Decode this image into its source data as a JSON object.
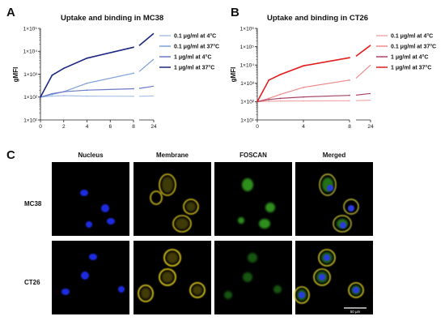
{
  "figure": {
    "panel_letters": [
      "A",
      "B",
      "C"
    ],
    "scalebar_label": "50 μm"
  },
  "chart_data": [
    {
      "type": "line",
      "panel": "A",
      "title": "Uptake and binding in MC38",
      "ylabel": "gMFI",
      "xlabel": "",
      "yscale": "log",
      "ylim": [
        10,
        100000
      ],
      "ytick_labels": [
        "1×10¹",
        "1×10²",
        "1×10³",
        "1×10⁴",
        "1×10⁵"
      ],
      "xtick_labels": [
        "0",
        "2",
        "4",
        "6",
        "8",
        "24"
      ],
      "x": [
        0,
        1,
        2,
        4,
        8,
        24
      ],
      "x_axis_break": [
        8,
        24
      ],
      "legend_placement": "right",
      "series": [
        {
          "name": "0.1 μg/ml at 4°C",
          "color": "#a8c2e6",
          "values": [
            100,
            110,
            115,
            110,
            108,
            112
          ]
        },
        {
          "name": "0.1 μg/ml at 37°C",
          "color": "#7d9fd9",
          "values": [
            100,
            130,
            170,
            400,
            1100,
            4500
          ]
        },
        {
          "name": "1 μg/ml at 4°C",
          "color": "#6a79c9",
          "values": [
            100,
            140,
            170,
            200,
            230,
            300
          ]
        },
        {
          "name": "1 μg/ml at 37°C",
          "color": "#1a2680",
          "values": [
            100,
            900,
            1800,
            5000,
            15000,
            60000
          ]
        }
      ]
    },
    {
      "type": "line",
      "panel": "B",
      "title": "Uptake and binding in CT26",
      "ylabel": "gMFI",
      "xlabel": "",
      "yscale": "log",
      "ylim": [
        10,
        1000000
      ],
      "ytick_labels": [
        "1×10¹",
        "1×10²",
        "1×10³",
        "1×10⁴",
        "1×10⁵",
        "1×10⁶"
      ],
      "xtick_labels": [
        "0",
        "4",
        "8",
        "24"
      ],
      "x": [
        0,
        1,
        2,
        4,
        8,
        24
      ],
      "x_axis_break": [
        8,
        24
      ],
      "legend_placement": "right",
      "series": [
        {
          "name": "0.1 μg/ml at 4°C",
          "color": "#f2a8a8",
          "values": [
            100,
            105,
            108,
            110,
            112,
            120
          ]
        },
        {
          "name": "0.1 μg/ml at 37°C",
          "color": "#ee8a8a",
          "values": [
            100,
            150,
            250,
            600,
            1500,
            10000
          ]
        },
        {
          "name": "1 μg/ml at 4°C",
          "color": "#a8466a",
          "values": [
            100,
            130,
            150,
            180,
            220,
            280
          ]
        },
        {
          "name": "1 μg/ml at 37°C",
          "color": "#e31d1d",
          "values": [
            100,
            1500,
            3000,
            9000,
            25000,
            120000
          ]
        }
      ]
    }
  ],
  "micrographs": {
    "columns": [
      "Nucleus",
      "Membrane",
      "FOSCAN",
      "Merged"
    ],
    "rows": [
      "MC38",
      "CT26"
    ]
  }
}
